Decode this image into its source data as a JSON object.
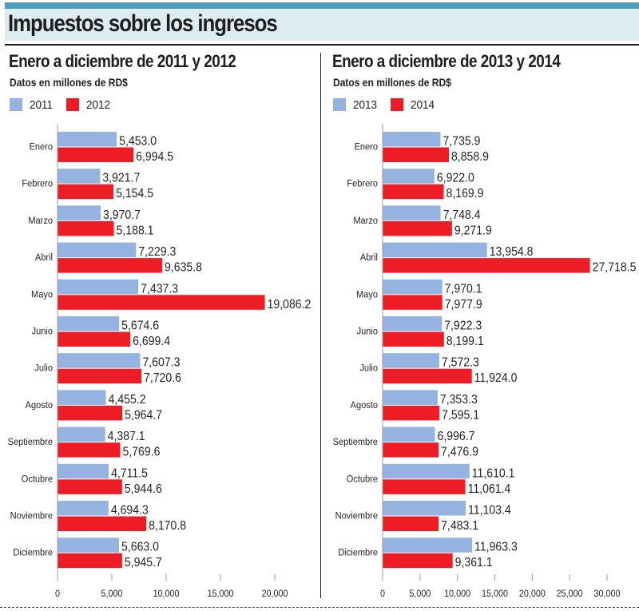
{
  "header": {
    "title": "Impuestos sobre los ingresos",
    "colors": {
      "stripe": "#4c9fbe",
      "band": "#ddebf2"
    }
  },
  "chart_data": [
    {
      "type": "bar",
      "orientation": "horizontal",
      "title": "Enero a diciembre de 2011 y 2012",
      "subtitle": "Datos en millones de RD$",
      "xlabel": "",
      "ylabel": "",
      "xlim": [
        0,
        20000
      ],
      "xticks": [
        0,
        5000,
        10000,
        15000,
        20000
      ],
      "xtick_labels": [
        "0",
        "5,000",
        "10,000",
        "15,000",
        "20,000"
      ],
      "grid": false,
      "legend": "top-left",
      "categories": [
        "Enero",
        "Febrero",
        "Marzo",
        "Abril",
        "Mayo",
        "Junio",
        "Julio",
        "Agosto",
        "Septiembre",
        "Octubre",
        "Noviembre",
        "Diciembre"
      ],
      "series": [
        {
          "name": "2011",
          "color": "#95b3e0",
          "values": [
            5453.0,
            3921.7,
            3970.7,
            7229.3,
            7437.3,
            5674.6,
            7607.3,
            4455.2,
            4387.1,
            4711.5,
            4694.3,
            5663.0
          ],
          "labels": [
            "5,453.0",
            "3,921.7",
            "3,970.7",
            "7,229.3",
            "7,437.3",
            "5,674.6",
            "7,607.3",
            "4,455.2",
            "4,387.1",
            "4,711.5",
            "4,694.3",
            "5,663.0"
          ]
        },
        {
          "name": "2012",
          "color": "#ee1c25",
          "values": [
            6994.5,
            5154.5,
            5188.1,
            9635.8,
            19086.2,
            6699.4,
            7720.6,
            5964.7,
            5769.6,
            5944.6,
            8170.8,
            5945.7
          ],
          "labels": [
            "6,994.5",
            "5,154.5",
            "5,188.1",
            "9,635.8",
            "19,086.2",
            "6,699.4",
            "7,720.6",
            "5,964.7",
            "5,769.6",
            "5,944.6",
            "8,170.8",
            "5,945.7"
          ]
        }
      ]
    },
    {
      "type": "bar",
      "orientation": "horizontal",
      "title": "Enero a diciembre de 2013 y 2014",
      "subtitle": "Datos en millones de RD$",
      "xlabel": "",
      "ylabel": "",
      "xlim": [
        0,
        30000
      ],
      "xticks": [
        0,
        5000,
        10000,
        15000,
        20000,
        25000,
        30000
      ],
      "xtick_labels": [
        "0",
        "5,000",
        "10,000",
        "15,000",
        "20,000",
        "25,000",
        "30,000"
      ],
      "grid": false,
      "legend": "top-left",
      "categories": [
        "Enero",
        "Febrero",
        "Marzo",
        "Abril",
        "Mayo",
        "Junio",
        "Julio",
        "Agosto",
        "Septiembre",
        "Octubre",
        "Noviembre",
        "Diciembre"
      ],
      "series": [
        {
          "name": "2013",
          "color": "#95b3e0",
          "values": [
            7735.9,
            6922.0,
            7748.4,
            13954.8,
            7970.1,
            7922.3,
            7572.3,
            7353.3,
            6996.7,
            11610.1,
            11103.4,
            11963.3
          ],
          "labels": [
            "7,735.9",
            "6,922.0",
            "7,748.4",
            "13,954.8",
            "7,970.1",
            "7,922.3",
            "7,572.3",
            "7,353.3",
            "6,996.7",
            "11,610.1",
            "11,103.4",
            "11,963.3"
          ]
        },
        {
          "name": "2014",
          "color": "#ee1c25",
          "values": [
            8858.9,
            8169.9,
            9271.9,
            27718.5,
            7977.9,
            8199.1,
            11924.0,
            7595.1,
            7476.9,
            11061.4,
            7483.1,
            9361.1
          ],
          "labels": [
            "8,858.9",
            "8,169.9",
            "9,271.9",
            "27,718.5",
            "7,977.9",
            "8,199.1",
            "11,924.0",
            "7,595.1",
            "7,476.9",
            "11,061.4",
            "7,483.1",
            "9,361.1"
          ]
        }
      ]
    }
  ]
}
